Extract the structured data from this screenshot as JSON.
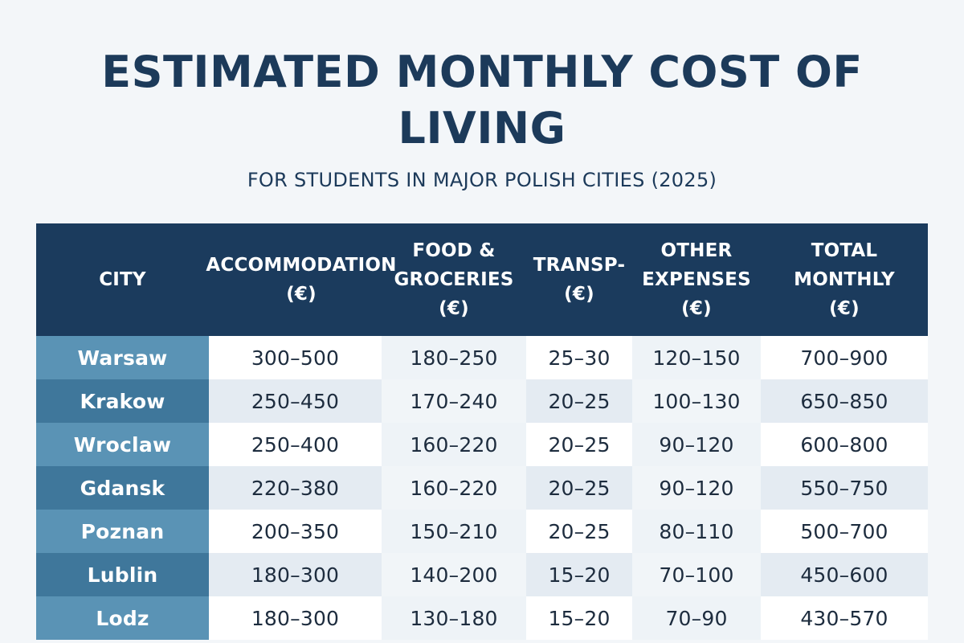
{
  "title": "ESTIMATED MONTHLY COST OF LIVING",
  "subtitle": "FOR STUDENTS IN MAJOR POLISH CITIES (2025)",
  "colors": {
    "header_bg": "#1b3b5d",
    "city_light": "#5a93b5",
    "city_dark": "#3f779b",
    "row_light": "#ffffff",
    "row_tint": "#eef3f7",
    "text_dark": "#1c3a5a"
  },
  "chart_data": {
    "type": "table",
    "title": "ESTIMATED MONTHLY COST OF LIVING",
    "subtitle": "FOR STUDENTS IN MAJOR POLISH CITIES (2025)",
    "columns": [
      "CITY",
      "ACCOMMODATION\n(€)",
      "FOOD &\nGROCERIES\n(€)",
      "TRANSP-\n(€)",
      "OTHER\nEXPENSES\n(€)",
      "TOTAL\nMONTHLY\n(€)"
    ],
    "rows": [
      [
        "Warsaw",
        "300–500",
        "180–250",
        "25–30",
        "120–150",
        "700–900"
      ],
      [
        "Krakow",
        "250–450",
        "170–240",
        "20–25",
        "100–130",
        "650–850"
      ],
      [
        "Wroclaw",
        "250–400",
        "160–220",
        "20–25",
        "90–120",
        "600–800"
      ],
      [
        "Gdansk",
        "220–380",
        "160–220",
        "20–25",
        "90–120",
        "550–750"
      ],
      [
        "Poznan",
        "200–350",
        "150–210",
        "20–25",
        "80–110",
        "500–700"
      ],
      [
        "Lublin",
        "180–300",
        "140–200",
        "15–20",
        "70–100",
        "450–600"
      ],
      [
        "Lodz",
        "180–300",
        "130–180",
        "15–20",
        "70–90",
        "430–570"
      ]
    ]
  }
}
